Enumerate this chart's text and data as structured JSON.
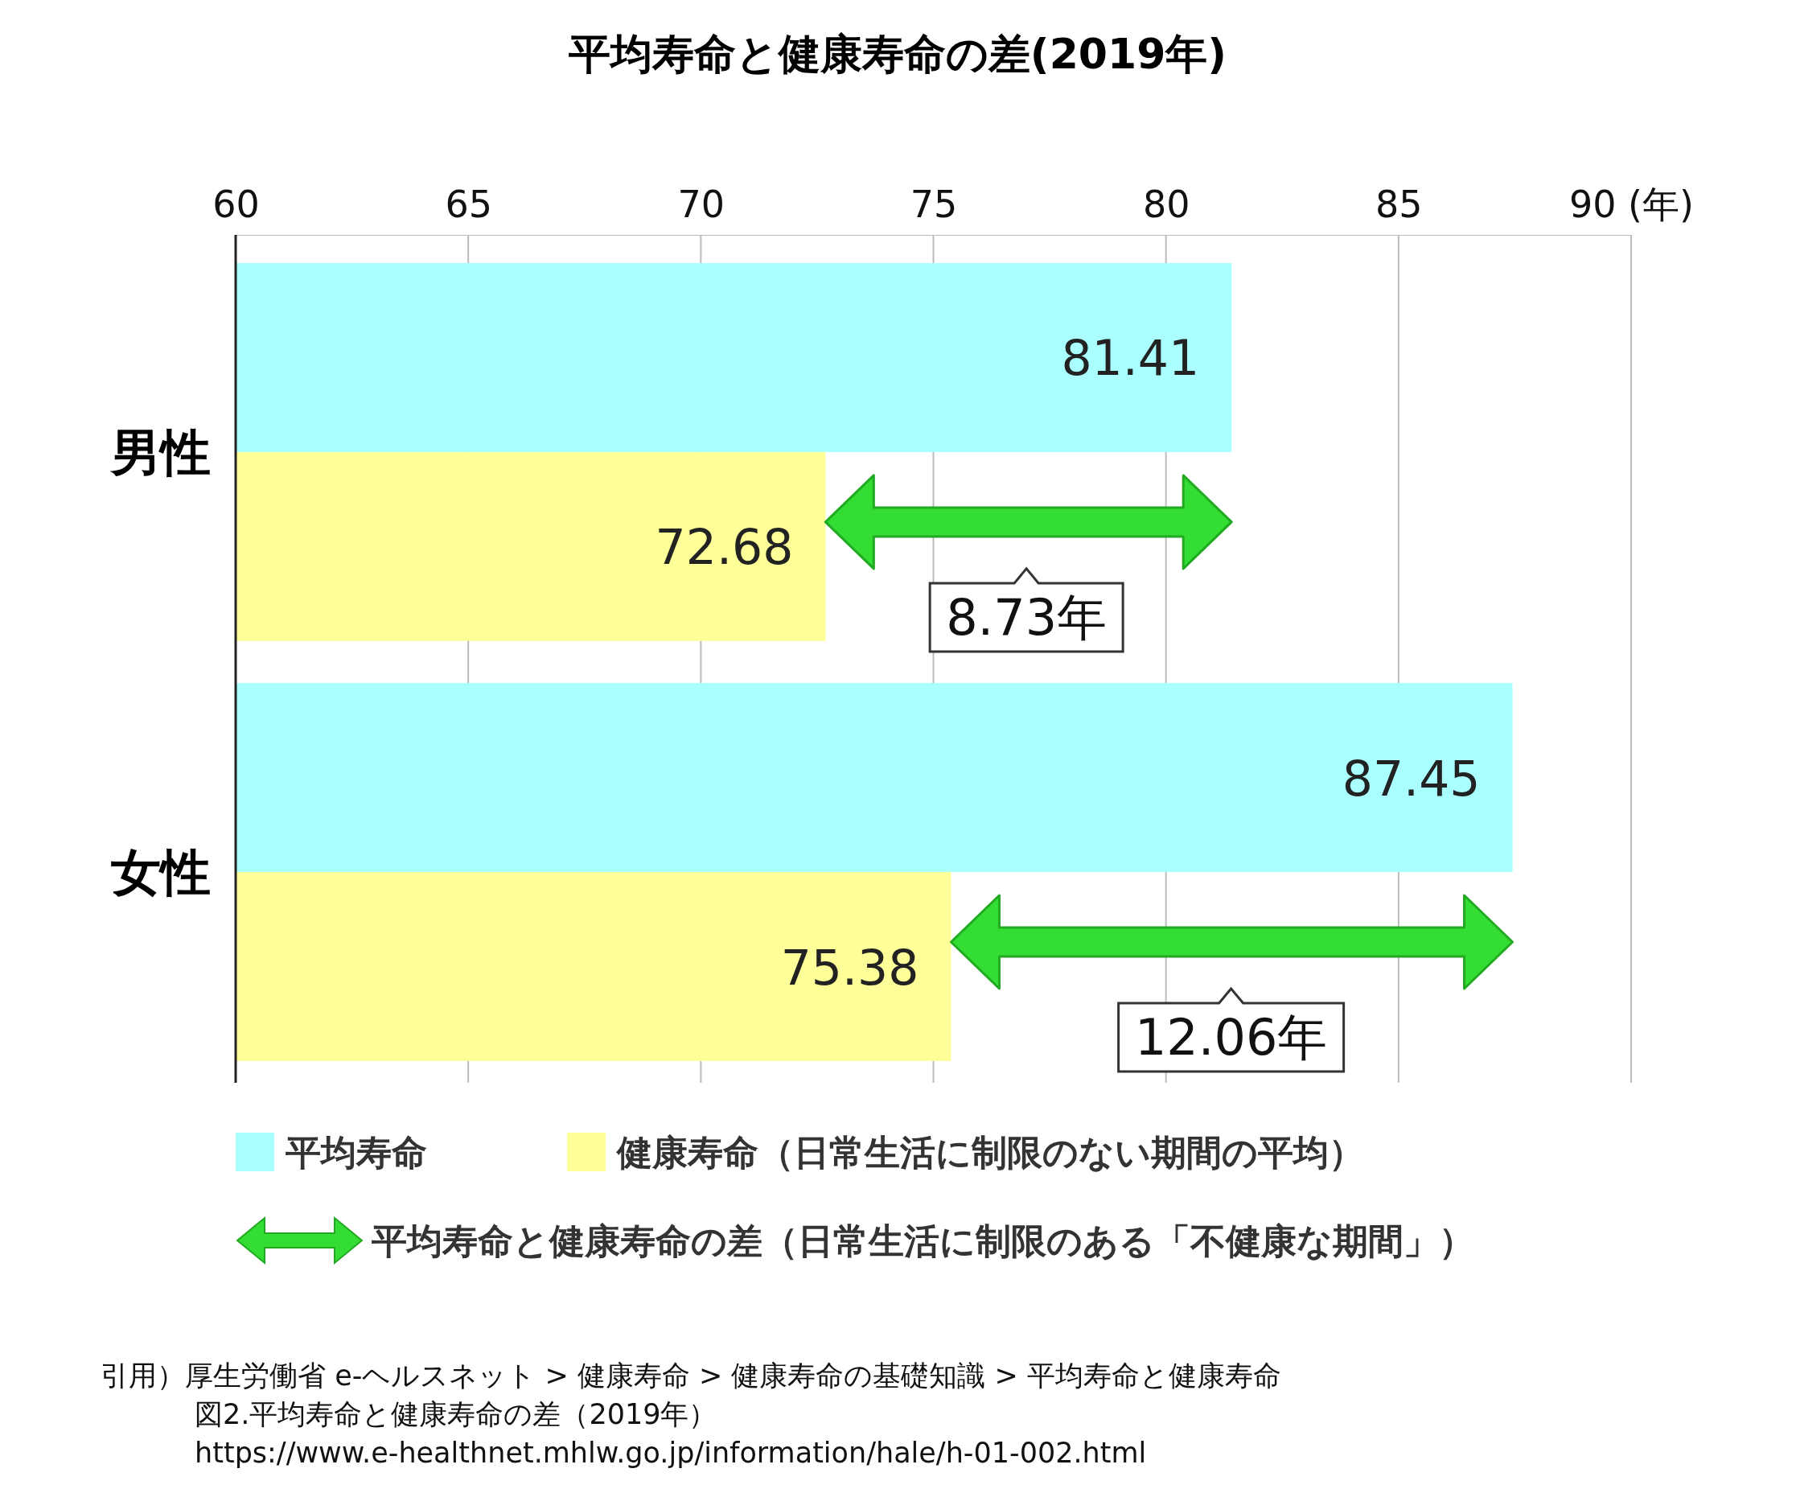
{
  "chart_data": {
    "type": "bar",
    "orientation": "horizontal",
    "title": "平均寿命と健康寿命の差(2019年)",
    "categories": [
      "男性",
      "女性"
    ],
    "series": [
      {
        "name": "平均寿命",
        "color": "#aaffff",
        "values": [
          81.41,
          87.45
        ]
      },
      {
        "name": "健康寿命（日常生活に制限のない期間の平均）",
        "color": "#ffff99",
        "values": [
          72.68,
          75.38
        ]
      }
    ],
    "xlim": [
      60,
      90
    ],
    "xticks": [
      60,
      65,
      70,
      75,
      80,
      85,
      {
        "value": 90,
        "label": "90 (年)"
      }
    ],
    "grid": "x",
    "legend": "bottom",
    "data_labels": true,
    "annotations": [
      {
        "text": "8.73年",
        "x": 77.0,
        "y": "男性"
      },
      {
        "text": "12.06年",
        "x": 81.4,
        "y": "女性"
      },
      "平均寿命と健康寿命の差（日常生活に制限のある「不健康な期間」）",
      "引用）厚生労働省 e-ヘルスネット > 健康寿命 > 健康寿命の基礎知識 > 平均寿命と健康寿命",
      "図2.平均寿命と健康寿命の差（2019年）",
      "https://www.e-healthnet.mhlw.go.jp/information/hale/h-01-002.html"
    ]
  }
}
